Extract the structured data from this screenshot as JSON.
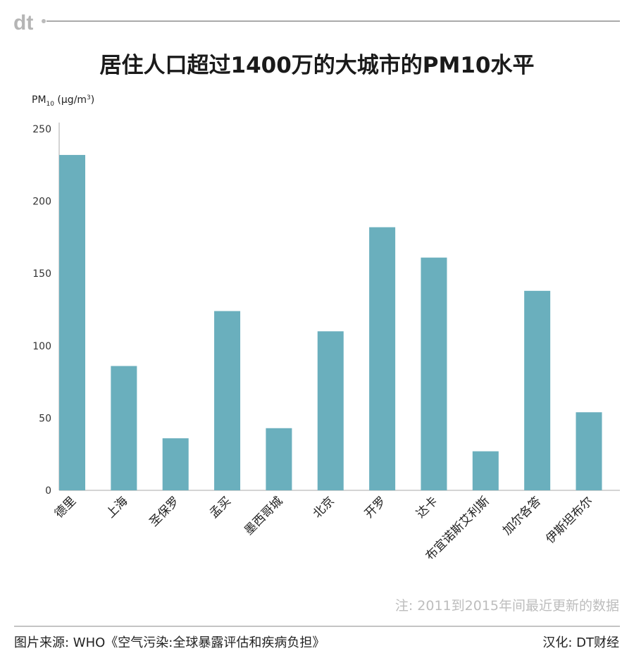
{
  "brand": {
    "logo_text": "dt"
  },
  "chart_data": {
    "type": "bar",
    "title": "居住人口超过1400万的大城市的PM10水平",
    "ylabel": "PM10 (µg/m3)",
    "ylabel_parts": {
      "main": "PM",
      "sub": "10",
      "unit_prefix": " (µg/m",
      "sup": "3",
      "unit_suffix": ")"
    },
    "xlabel": "",
    "ylim": [
      0,
      250
    ],
    "yticks": [
      0,
      50,
      100,
      150,
      200,
      250
    ],
    "grid": false,
    "categories": [
      "德里",
      "上海",
      "圣保罗",
      "孟买",
      "墨西哥城",
      "北京",
      "开罗",
      "达卡",
      "布宜诺斯艾利斯",
      "加尔各答",
      "伊斯坦布尔"
    ],
    "values": [
      232,
      86,
      36,
      124,
      43,
      110,
      182,
      161,
      27,
      138,
      54
    ],
    "bar_color": "#6aafbd"
  },
  "note": "注: 2011到2015年间最近更新的数据",
  "footer": {
    "source": "图片来源: WHO《空气污染:全球暴露评估和疾病负担》",
    "credit": "汉化: DT财经"
  }
}
